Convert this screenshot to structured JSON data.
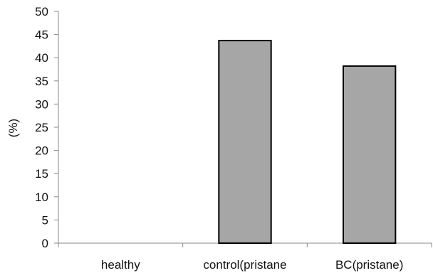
{
  "chart_data": {
    "type": "bar",
    "title": "",
    "xlabel": "",
    "ylabel": "(%)",
    "categories": [
      "healthy",
      "control(pristane",
      "BC(pristane)"
    ],
    "values": [
      0,
      43.7,
      38.2
    ],
    "ylim": [
      0,
      50
    ],
    "yticks": [
      0,
      5,
      10,
      15,
      20,
      25,
      30,
      35,
      40,
      45,
      50
    ],
    "grid": false,
    "legend": "none",
    "bar_color": "#a6a6a6",
    "bar_edge_color": "#000000"
  }
}
